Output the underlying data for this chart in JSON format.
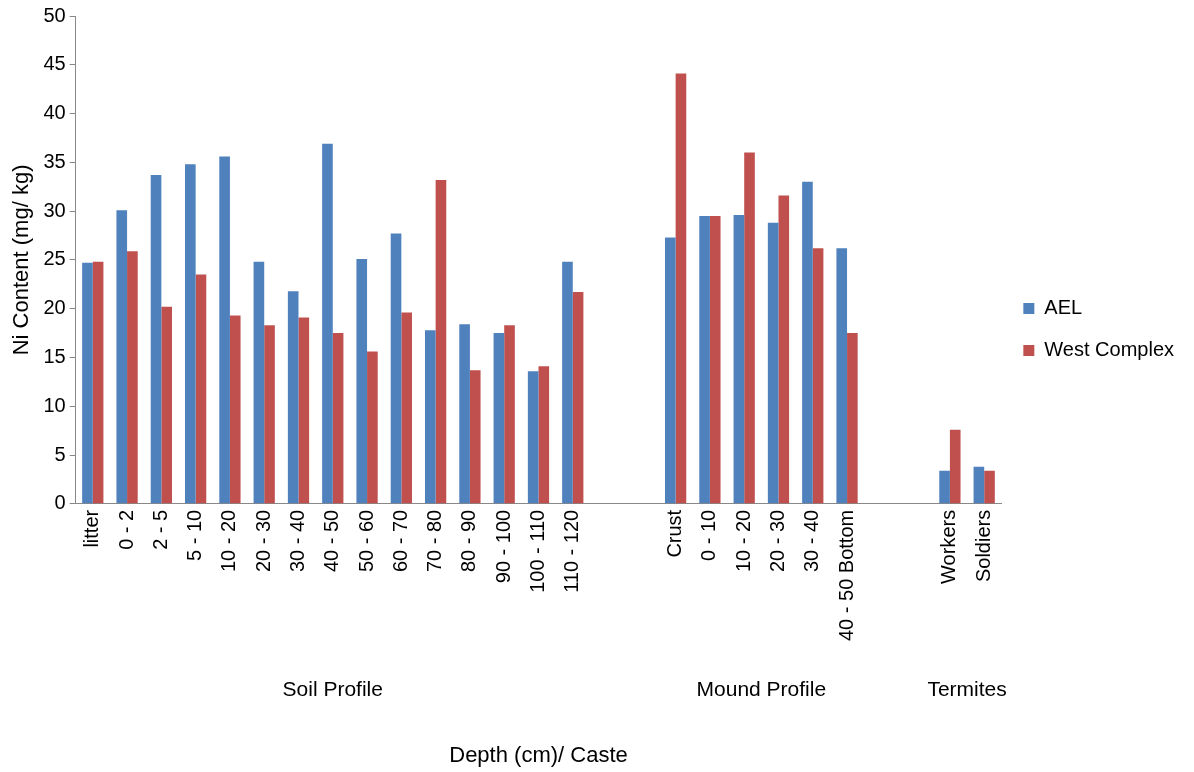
{
  "chart_data": {
    "type": "bar",
    "xlabel": "Depth (cm)/ Caste",
    "ylabel": "Ni Content (mg/ kg)",
    "categories": [
      "litter",
      "0 - 2",
      "2 - 5",
      "5 - 10",
      "10 - 20",
      "20 - 30",
      "30 - 40",
      "40 - 50",
      "50 - 60",
      "60 - 70",
      "70 - 80",
      "80 - 90",
      "90 - 100",
      "100 - 110",
      "110 - 120",
      null,
      null,
      "Crust",
      "0 - 10",
      "10 - 20",
      "20 - 30",
      "30 - 40",
      "40 - 50 Bottom",
      null,
      null,
      "Workers",
      "Soldiers"
    ],
    "series": [
      {
        "name": "AEL",
        "color": "#4f81bd",
        "values": [
          24.7,
          30.1,
          33.7,
          34.8,
          35.6,
          24.8,
          21.8,
          36.9,
          25.1,
          27.7,
          17.8,
          18.4,
          17.5,
          13.6,
          24.8,
          null,
          null,
          27.3,
          29.5,
          29.6,
          28.8,
          33.0,
          26.2,
          null,
          null,
          3.4,
          3.8
        ]
      },
      {
        "name": "West Complex",
        "color": "#c0504d",
        "values": [
          24.8,
          25.9,
          20.2,
          23.5,
          19.3,
          18.3,
          19.1,
          17.5,
          15.6,
          19.6,
          33.2,
          13.7,
          18.3,
          14.1,
          21.7,
          null,
          null,
          44.1,
          29.5,
          36.0,
          31.6,
          26.2,
          17.5,
          null,
          null,
          7.6,
          3.4
        ]
      }
    ],
    "ylim": [
      0,
      50
    ],
    "yticks": [
      0,
      5,
      10,
      15,
      20,
      25,
      30,
      35,
      40,
      45,
      50
    ],
    "grid": false,
    "legend": "right",
    "annotations": [
      "Soil Profile",
      "Mound Profile",
      "Termites"
    ]
  }
}
